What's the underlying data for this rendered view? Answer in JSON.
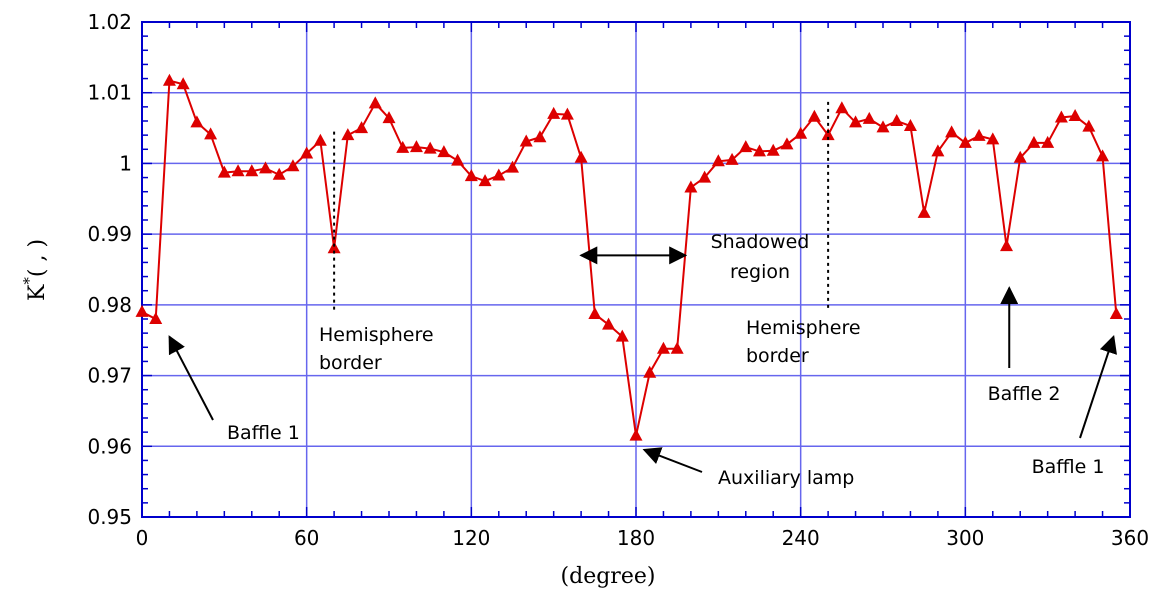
{
  "chart_data": {
    "type": "line",
    "xlabel": "(degree)",
    "ylabel": {
      "base": "K",
      "sup": "*",
      "rest": "( , )"
    },
    "xlim": [
      0,
      360
    ],
    "ylim": [
      0.95,
      1.02
    ],
    "xticks": [
      "0",
      "60",
      "120",
      "180",
      "240",
      "300",
      "360"
    ],
    "yticks": [
      "0.95",
      "0.96",
      "0.97",
      "0.98",
      "0.99",
      "1",
      "1.01",
      "1.02"
    ],
    "grid": true,
    "line_color": "#dd0000",
    "grid_color": "#6666ee",
    "frame_color": "#0000cc",
    "series": [
      {
        "x": [
          0,
          5,
          10,
          15,
          20,
          25,
          30,
          35,
          40,
          45,
          50,
          55,
          60,
          65,
          70,
          75,
          80,
          85,
          90,
          95,
          100,
          105,
          110,
          115,
          120,
          125,
          130,
          135,
          140,
          145,
          150,
          155,
          160,
          165,
          170,
          175,
          180,
          185,
          190,
          195,
          200,
          205,
          210,
          215,
          220,
          225,
          230,
          235,
          240,
          245,
          250,
          255,
          260,
          265,
          270,
          275,
          280,
          285,
          290,
          295,
          300,
          305,
          310,
          315,
          320,
          325,
          330,
          335,
          340,
          345,
          350,
          355
        ],
        "y": [
          0.979,
          0.978,
          1.0117,
          1.0112,
          1.0058,
          1.0041,
          0.9987,
          0.9989,
          0.9989,
          0.9993,
          0.9984,
          0.9996,
          1.0014,
          1.0032,
          0.988,
          1.004,
          1.005,
          1.0085,
          1.0064,
          1.0022,
          1.0023,
          1.0021,
          1.0016,
          1.0004,
          0.9982,
          0.9975,
          0.9983,
          0.9994,
          1.0031,
          1.0037,
          1.007,
          1.0069,
          1.0008,
          0.9787,
          0.9772,
          0.9755,
          0.9615,
          0.9704,
          0.9738,
          0.9738,
          0.9966,
          0.998,
          1.0003,
          1.0005,
          1.0023,
          1.0017,
          1.0018,
          1.0027,
          1.0042,
          1.0066,
          1.004,
          1.0078,
          1.0058,
          1.0063,
          1.0051,
          1.006,
          1.0053,
          0.993,
          1.0017,
          1.0044,
          1.0029,
          1.0039,
          1.0034,
          0.9883,
          1.0008,
          1.0029,
          1.0029,
          1.0065,
          1.0067,
          1.0052,
          1.001,
          0.9787
        ]
      }
    ],
    "annotations": [
      {
        "lines": [
          "Hemisphere",
          "border"
        ],
        "dotted_x": 70,
        "dotted_y": [
          0.979,
          1.0045
        ]
      },
      {
        "lines": [
          "Hemisphere",
          "border"
        ],
        "dotted_x": 250,
        "dotted_y": [
          0.979,
          1.0087
        ]
      },
      {
        "lines": [
          "Shadowed",
          "region"
        ],
        "double_arrow_x": [
          160,
          198
        ],
        "double_arrow_y": 0.987
      },
      {
        "lines": [
          "Baffle 1"
        ],
        "points_to": [
          10,
          0.9755
        ]
      },
      {
        "lines": [
          "Auxiliary lamp"
        ],
        "points_to": [
          183,
          0.9595
        ]
      },
      {
        "lines": [
          "Baffle 2"
        ],
        "points_to": [
          316,
          0.9824
        ]
      },
      {
        "lines": [
          "Baffle 1"
        ],
        "points_to": [
          354,
          0.9755
        ]
      }
    ]
  }
}
